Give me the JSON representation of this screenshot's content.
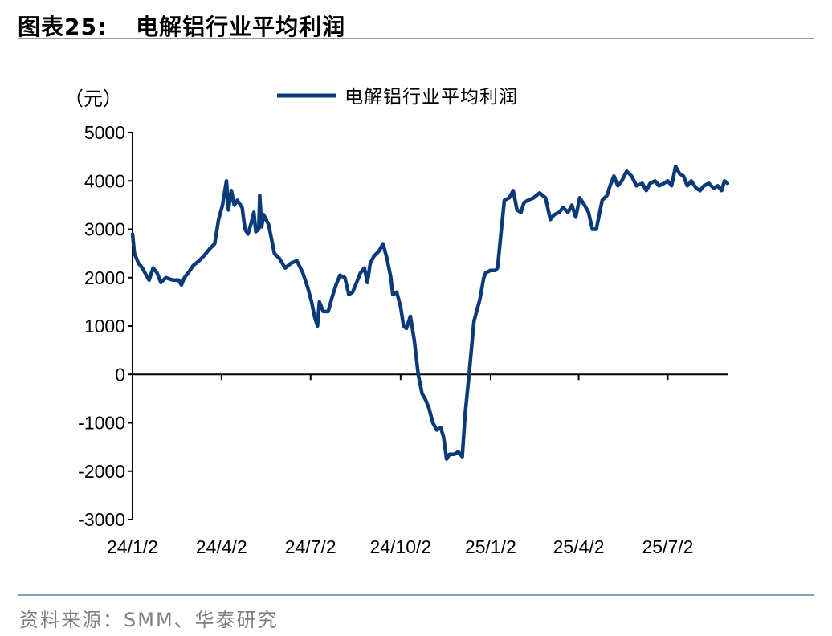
{
  "header": {
    "figure_label": "图表25:",
    "figure_title": "电解铝行业平均利润"
  },
  "footer": {
    "source": "资料来源：SMM、华泰研究"
  },
  "colors": {
    "series_line": "#0b3a7a",
    "axis": "#000000",
    "rule": "#8aa0b4",
    "source_text": "#7f7f7f"
  },
  "chart_data": {
    "type": "line",
    "title": "",
    "unit_label": "（元）",
    "xlabel": "",
    "ylabel": "",
    "ylim": [
      -3000,
      5000
    ],
    "yticks": [
      -3000,
      -2000,
      -1000,
      0,
      1000,
      2000,
      3000,
      4000,
      5000
    ],
    "ytick_labels": [
      "-3000",
      "-2000",
      "-1000",
      "0",
      "1000",
      "2000",
      "3000",
      "4000",
      "5000"
    ],
    "xlim": [
      "2024-01-02",
      "2025-09-02"
    ],
    "xticks": [
      "2024-01-02",
      "2024-04-02",
      "2024-07-02",
      "2024-10-02",
      "2025-01-02",
      "2025-04-02",
      "2025-07-02"
    ],
    "xtick_labels": [
      "24/1/2",
      "24/4/2",
      "24/7/2",
      "24/10/2",
      "25/1/2",
      "25/4/2",
      "25/7/2"
    ],
    "grid": false,
    "legend_position": "top-center",
    "series": [
      {
        "name": "电解铝行业平均利润",
        "points": [
          [
            "2024-01-02",
            2900
          ],
          [
            "2024-01-04",
            2500
          ],
          [
            "2024-01-08",
            2300
          ],
          [
            "2024-01-12",
            2200
          ],
          [
            "2024-01-16",
            2050
          ],
          [
            "2024-01-19",
            1950
          ],
          [
            "2024-01-23",
            2200
          ],
          [
            "2024-01-27",
            2100
          ],
          [
            "2024-01-31",
            1900
          ],
          [
            "2024-02-05",
            2000
          ],
          [
            "2024-02-12",
            1950
          ],
          [
            "2024-02-18",
            1950
          ],
          [
            "2024-02-21",
            1850
          ],
          [
            "2024-02-24",
            2000
          ],
          [
            "2024-02-28",
            2100
          ],
          [
            "2024-03-04",
            2250
          ],
          [
            "2024-03-10",
            2350
          ],
          [
            "2024-03-15",
            2450
          ],
          [
            "2024-03-21",
            2600
          ],
          [
            "2024-03-26",
            2700
          ],
          [
            "2024-03-30",
            3200
          ],
          [
            "2024-04-03",
            3500
          ],
          [
            "2024-04-07",
            4000
          ],
          [
            "2024-04-09",
            3400
          ],
          [
            "2024-04-12",
            3800
          ],
          [
            "2024-04-15",
            3500
          ],
          [
            "2024-04-18",
            3600
          ],
          [
            "2024-04-23",
            3450
          ],
          [
            "2024-04-26",
            3000
          ],
          [
            "2024-04-29",
            2900
          ],
          [
            "2024-05-02",
            3100
          ],
          [
            "2024-05-05",
            3350
          ],
          [
            "2024-05-07",
            2950
          ],
          [
            "2024-05-10",
            3000
          ],
          [
            "2024-05-11",
            3700
          ],
          [
            "2024-05-13",
            3050
          ],
          [
            "2024-05-15",
            3300
          ],
          [
            "2024-05-20",
            3100
          ],
          [
            "2024-05-26",
            2500
          ],
          [
            "2024-05-31",
            2400
          ],
          [
            "2024-06-06",
            2200
          ],
          [
            "2024-06-12",
            2300
          ],
          [
            "2024-06-18",
            2350
          ],
          [
            "2024-06-24",
            2100
          ],
          [
            "2024-06-29",
            1800
          ],
          [
            "2024-07-03",
            1500
          ],
          [
            "2024-07-06",
            1200
          ],
          [
            "2024-07-09",
            1000
          ],
          [
            "2024-07-11",
            1500
          ],
          [
            "2024-07-15",
            1300
          ],
          [
            "2024-07-20",
            1300
          ],
          [
            "2024-07-24",
            1600
          ],
          [
            "2024-07-28",
            1850
          ],
          [
            "2024-08-01",
            2050
          ],
          [
            "2024-08-06",
            2000
          ],
          [
            "2024-08-10",
            1650
          ],
          [
            "2024-08-14",
            1700
          ],
          [
            "2024-08-18",
            1900
          ],
          [
            "2024-08-22",
            2100
          ],
          [
            "2024-08-26",
            2200
          ],
          [
            "2024-08-29",
            1900
          ],
          [
            "2024-09-01",
            2300
          ],
          [
            "2024-09-05",
            2450
          ],
          [
            "2024-09-10",
            2550
          ],
          [
            "2024-09-14",
            2700
          ],
          [
            "2024-09-18",
            2400
          ],
          [
            "2024-09-22",
            2000
          ],
          [
            "2024-09-24",
            1650
          ],
          [
            "2024-09-28",
            1700
          ],
          [
            "2024-10-02",
            1400
          ],
          [
            "2024-10-05",
            1000
          ],
          [
            "2024-10-08",
            950
          ],
          [
            "2024-10-12",
            1200
          ],
          [
            "2024-10-16",
            700
          ],
          [
            "2024-10-20",
            0
          ],
          [
            "2024-10-24",
            -400
          ],
          [
            "2024-10-27",
            -500
          ],
          [
            "2024-10-31",
            -700
          ],
          [
            "2024-11-04",
            -1000
          ],
          [
            "2024-11-08",
            -1150
          ],
          [
            "2024-11-12",
            -1100
          ],
          [
            "2024-11-15",
            -1300
          ],
          [
            "2024-11-18",
            -1750
          ],
          [
            "2024-11-21",
            -1650
          ],
          [
            "2024-11-26",
            -1650
          ],
          [
            "2024-11-30",
            -1600
          ],
          [
            "2024-12-04",
            -1700
          ],
          [
            "2024-12-07",
            -800
          ],
          [
            "2024-12-11",
            0
          ],
          [
            "2024-12-16",
            1100
          ],
          [
            "2024-12-22",
            1550
          ],
          [
            "2024-12-26",
            2000
          ],
          [
            "2024-12-28",
            2100
          ],
          [
            "2025-01-02",
            2150
          ],
          [
            "2025-01-07",
            2150
          ],
          [
            "2025-01-09",
            2200
          ],
          [
            "2025-01-12",
            2800
          ],
          [
            "2025-01-16",
            3600
          ],
          [
            "2025-01-21",
            3650
          ],
          [
            "2025-01-25",
            3800
          ],
          [
            "2025-01-29",
            3400
          ],
          [
            "2025-02-02",
            3350
          ],
          [
            "2025-02-05",
            3550
          ],
          [
            "2025-02-09",
            3600
          ],
          [
            "2025-02-15",
            3650
          ],
          [
            "2025-02-21",
            3750
          ],
          [
            "2025-02-27",
            3650
          ],
          [
            "2025-03-04",
            3200
          ],
          [
            "2025-03-08",
            3300
          ],
          [
            "2025-03-13",
            3350
          ],
          [
            "2025-03-17",
            3450
          ],
          [
            "2025-03-22",
            3350
          ],
          [
            "2025-03-26",
            3500
          ],
          [
            "2025-03-30",
            3250
          ],
          [
            "2025-04-03",
            3650
          ],
          [
            "2025-04-08",
            3500
          ],
          [
            "2025-04-12",
            3350
          ],
          [
            "2025-04-16",
            3000
          ],
          [
            "2025-04-20",
            3000
          ],
          [
            "2025-04-26",
            3600
          ],
          [
            "2025-05-01",
            3700
          ],
          [
            "2025-05-04",
            3900
          ],
          [
            "2025-05-08",
            4100
          ],
          [
            "2025-05-12",
            3900
          ],
          [
            "2025-05-16",
            4000
          ],
          [
            "2025-05-21",
            4200
          ],
          [
            "2025-05-26",
            4100
          ],
          [
            "2025-05-31",
            3900
          ],
          [
            "2025-06-06",
            3950
          ],
          [
            "2025-06-10",
            3800
          ],
          [
            "2025-06-14",
            3950
          ],
          [
            "2025-06-19",
            4000
          ],
          [
            "2025-06-23",
            3900
          ],
          [
            "2025-06-28",
            3950
          ],
          [
            "2025-07-02",
            4000
          ],
          [
            "2025-07-06",
            3900
          ],
          [
            "2025-07-10",
            4300
          ],
          [
            "2025-07-14",
            4150
          ],
          [
            "2025-07-18",
            4100
          ],
          [
            "2025-07-22",
            3900
          ],
          [
            "2025-07-26",
            4000
          ],
          [
            "2025-07-31",
            3850
          ],
          [
            "2025-08-04",
            3800
          ],
          [
            "2025-08-08",
            3900
          ],
          [
            "2025-08-13",
            3950
          ],
          [
            "2025-08-18",
            3850
          ],
          [
            "2025-08-22",
            3900
          ],
          [
            "2025-08-26",
            3800
          ],
          [
            "2025-08-29",
            4000
          ],
          [
            "2025-09-01",
            3950
          ]
        ]
      }
    ]
  }
}
